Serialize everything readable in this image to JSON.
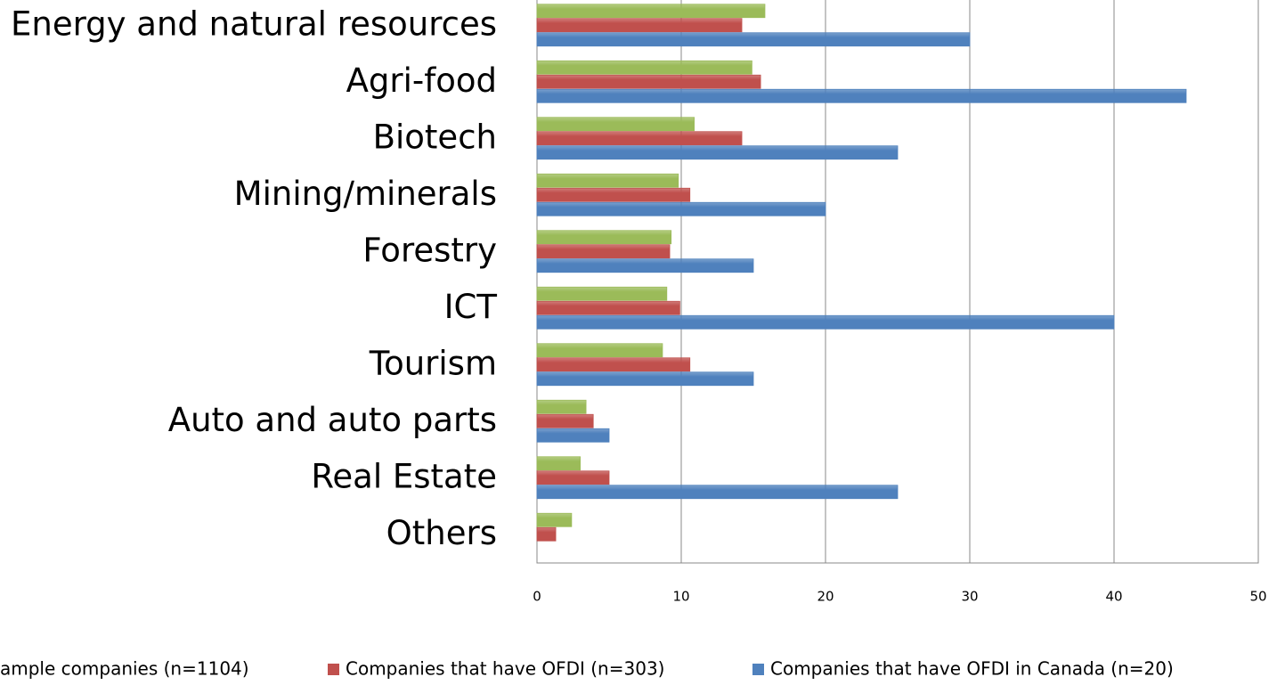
{
  "chart_data": {
    "type": "bar",
    "orientation": "horizontal",
    "categories": [
      "Energy and natural resources",
      "Agri-food",
      "Biotech",
      "Mining/minerals",
      "Forestry",
      "ICT",
      "Tourism",
      "Auto and auto parts",
      "Real Estate",
      "Others"
    ],
    "series": [
      {
        "name": "ample companies (n=1104)",
        "color": "#9bbb59",
        "values": [
          15.8,
          14.9,
          10.9,
          9.8,
          9.3,
          9.0,
          8.7,
          3.4,
          3.0,
          2.4
        ]
      },
      {
        "name": "Companies that have OFDI (n=303)",
        "color": "#c0504d",
        "values": [
          14.2,
          15.5,
          14.2,
          10.6,
          9.2,
          9.9,
          10.6,
          3.9,
          5.0,
          1.3
        ]
      },
      {
        "name": "Companies that have OFDI in Canada (n=20)",
        "color": "#4f81bd",
        "values": [
          30,
          45,
          25,
          20,
          15,
          40,
          15,
          5,
          25,
          0
        ]
      }
    ],
    "xlim": [
      0,
      50
    ],
    "xticks": [
      0,
      10,
      20,
      30,
      40,
      50
    ],
    "grid": true,
    "legend": "bottom"
  }
}
